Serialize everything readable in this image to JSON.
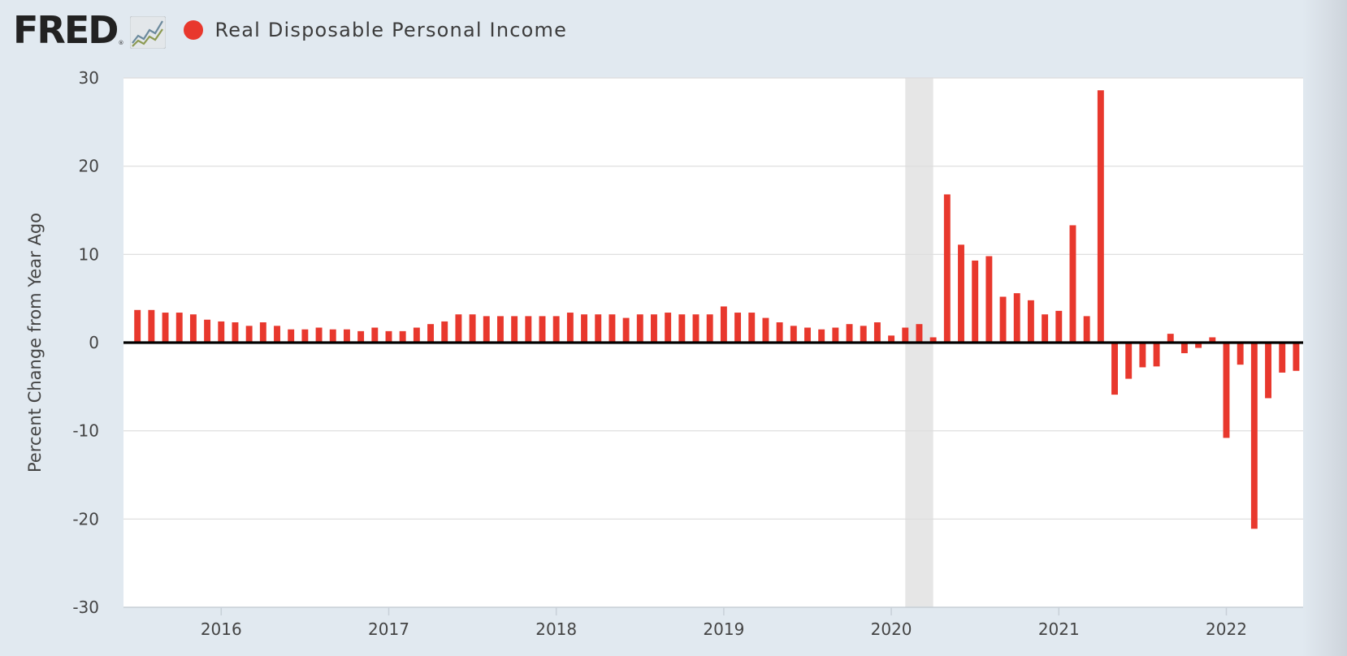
{
  "header": {
    "logo_text": "FRED",
    "logo_mark": "®",
    "logo_icon": "line-graph-icon",
    "series_label": "Real Disposable Personal Income",
    "series_color": "#e8382d"
  },
  "chart_data": {
    "type": "bar",
    "series": [
      {
        "name": "Real Disposable Personal Income",
        "color": "#e8382d",
        "x": [
          "2015-07",
          "2015-08",
          "2015-09",
          "2015-10",
          "2015-11",
          "2015-12",
          "2016-01",
          "2016-02",
          "2016-03",
          "2016-04",
          "2016-05",
          "2016-06",
          "2016-07",
          "2016-08",
          "2016-09",
          "2016-10",
          "2016-11",
          "2016-12",
          "2017-01",
          "2017-02",
          "2017-03",
          "2017-04",
          "2017-05",
          "2017-06",
          "2017-07",
          "2017-08",
          "2017-09",
          "2017-10",
          "2017-11",
          "2017-12",
          "2018-01",
          "2018-02",
          "2018-03",
          "2018-04",
          "2018-05",
          "2018-06",
          "2018-07",
          "2018-08",
          "2018-09",
          "2018-10",
          "2018-11",
          "2018-12",
          "2019-01",
          "2019-02",
          "2019-03",
          "2019-04",
          "2019-05",
          "2019-06",
          "2019-07",
          "2019-08",
          "2019-09",
          "2019-10",
          "2019-11",
          "2019-12",
          "2020-01",
          "2020-02",
          "2020-03",
          "2020-04",
          "2020-05",
          "2020-06",
          "2020-07",
          "2020-08",
          "2020-09",
          "2020-10",
          "2020-11",
          "2020-12",
          "2021-01",
          "2021-02",
          "2021-03",
          "2021-04",
          "2021-05",
          "2021-06",
          "2021-07",
          "2021-08",
          "2021-09",
          "2021-10",
          "2021-11",
          "2021-12",
          "2022-01",
          "2022-02",
          "2022-03",
          "2022-04",
          "2022-05",
          "2022-06"
        ],
        "values": [
          3.7,
          3.7,
          3.4,
          3.4,
          3.2,
          2.6,
          2.4,
          2.3,
          1.9,
          2.3,
          1.9,
          1.5,
          1.5,
          1.7,
          1.5,
          1.5,
          1.3,
          1.7,
          1.3,
          1.3,
          1.7,
          2.1,
          2.4,
          3.2,
          3.2,
          3.0,
          3.0,
          3.0,
          3.0,
          3.0,
          3.0,
          3.4,
          3.2,
          3.2,
          3.2,
          2.8,
          3.2,
          3.2,
          3.4,
          3.2,
          3.2,
          3.2,
          4.1,
          3.4,
          3.4,
          2.8,
          2.3,
          1.9,
          1.7,
          1.5,
          1.7,
          2.1,
          1.9,
          2.3,
          0.8,
          1.7,
          2.1,
          0.6,
          16.8,
          11.1,
          9.3,
          9.8,
          5.2,
          5.6,
          4.8,
          3.2,
          3.6,
          13.3,
          3.0,
          28.6,
          -5.9,
          -4.1,
          -2.8,
          -2.7,
          1.0,
          -1.2,
          -0.6,
          0.6,
          -10.8,
          -2.5,
          -21.1,
          -6.3,
          -3.4,
          -3.2
        ]
      }
    ],
    "xlabel": "",
    "ylabel": "Percent Change from Year Ago",
    "ylim": [
      -30,
      30
    ],
    "yticks": [
      -30,
      -20,
      -10,
      0,
      10,
      20,
      30
    ],
    "xlim": [
      "2015-06",
      "2022-06"
    ],
    "xticks": [
      "2016",
      "2017",
      "2018",
      "2019",
      "2020",
      "2021",
      "2022"
    ],
    "recession_shading": {
      "start": "2020-02",
      "end": "2020-04",
      "color": "#e6e6e6"
    },
    "grid": "horizontal",
    "zero_line": true,
    "plot_background": "#ffffff",
    "page_background": "#e1e9f0"
  }
}
